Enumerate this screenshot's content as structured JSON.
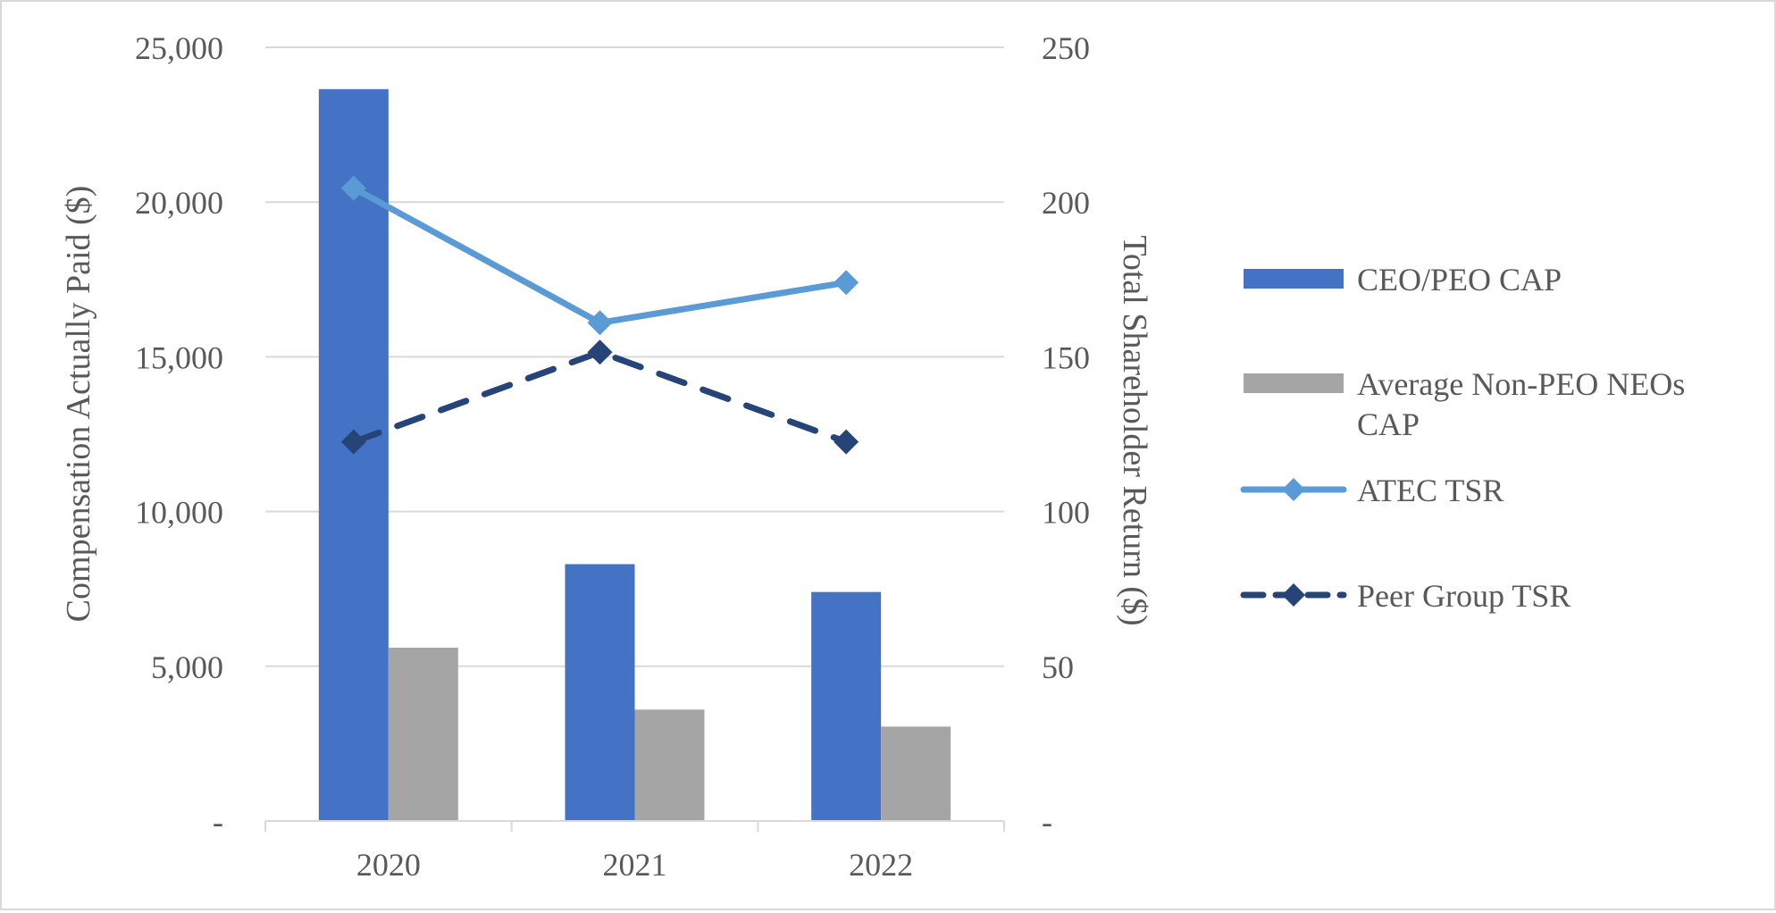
{
  "chart_data": {
    "type": "bar",
    "title": "",
    "categories": [
      "2020",
      "2021",
      "2022"
    ],
    "ylabel_left": "Compensation Actually Paid ($)",
    "ylabel_right": "Total Shareholder Return ($)",
    "yaxis_left": {
      "min": 0,
      "max": 25000,
      "ticks": [
        0,
        5000,
        10000,
        15000,
        20000,
        25000
      ],
      "tick_labels": [
        "-",
        "5,000",
        "10,000",
        "15,000",
        "20,000",
        "25,000"
      ]
    },
    "yaxis_right": {
      "min": 0,
      "max": 250,
      "ticks": [
        0,
        50,
        100,
        150,
        200,
        250
      ],
      "tick_labels": [
        "-",
        "50",
        "100",
        "150",
        "200",
        "250"
      ]
    },
    "grid": true,
    "legend_position": "right",
    "series": [
      {
        "name": "CEO/PEO CAP",
        "type": "bar",
        "axis": "left",
        "color": "#4472c4",
        "values": [
          23650,
          8300,
          7400
        ]
      },
      {
        "name": "Average Non-PEO NEOs CAP",
        "type": "bar",
        "axis": "left",
        "color": "#a5a5a5",
        "values": [
          5600,
          3600,
          3050
        ]
      },
      {
        "name": "ATEC TSR",
        "type": "line",
        "axis": "right",
        "color": "#5b9bd5",
        "dashed": false,
        "marker": "diamond",
        "values": [
          204.5,
          161,
          174
        ]
      },
      {
        "name": "Peer Group TSR",
        "type": "line",
        "axis": "right",
        "color": "#264478",
        "dashed": true,
        "marker": "diamond",
        "values": [
          122.5,
          151.5,
          122.5
        ]
      }
    ],
    "legend": [
      {
        "lines": [
          "CEO/PEO CAP"
        ]
      },
      {
        "lines": [
          "Average Non-PEO NEOs",
          "CAP"
        ]
      },
      {
        "lines": [
          "ATEC TSR"
        ]
      },
      {
        "lines": [
          "Peer Group TSR"
        ]
      }
    ]
  }
}
